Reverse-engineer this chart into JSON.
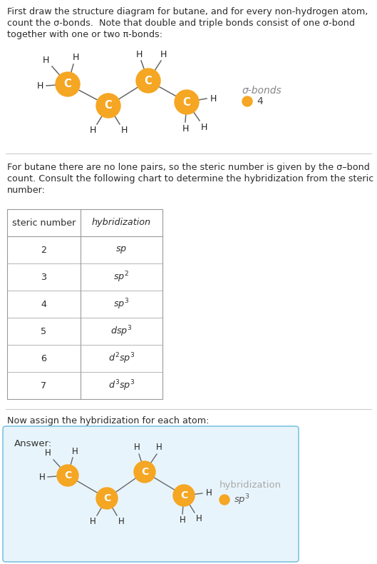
{
  "title_text_lines": [
    "First draw the structure diagram for butane, and for every non-hydrogen atom,",
    "count the σ-bonds.  Note that double and triple bonds consist of one σ-bond",
    "together with one or two π-bonds:"
  ],
  "section2_text_lines": [
    "For butane there are no lone pairs, so the steric number is given by the σ–bond",
    "count. Consult the following chart to determine the hybridization from the steric",
    "number:"
  ],
  "section3_text": "Now assign the hybridization for each atom:",
  "table_headers": [
    "steric number",
    "hybridization"
  ],
  "table_rows": [
    [
      "2",
      "sp"
    ],
    [
      "3",
      "sp²"
    ],
    [
      "4",
      "sp³"
    ],
    [
      "5",
      "dsp³"
    ],
    [
      "6",
      "d²sp³"
    ],
    [
      "7",
      "d³sp³"
    ]
  ],
  "carbon_color": "#F5A623",
  "carbon_label": "C",
  "sigma_bonds_label": "σ-bonds",
  "sigma_bonds_value": "4",
  "hybridization_label": "hybridization",
  "hybridization_value": "sp³",
  "answer_box_color": "#E8F4FB",
  "answer_box_border": "#7FC4E0",
  "bg_color": "#FFFFFF",
  "text_color": "#2B2B2B",
  "table_border_color": "#999999",
  "gray_text": "#AAAAAA",
  "divider_color": "#CCCCCC"
}
